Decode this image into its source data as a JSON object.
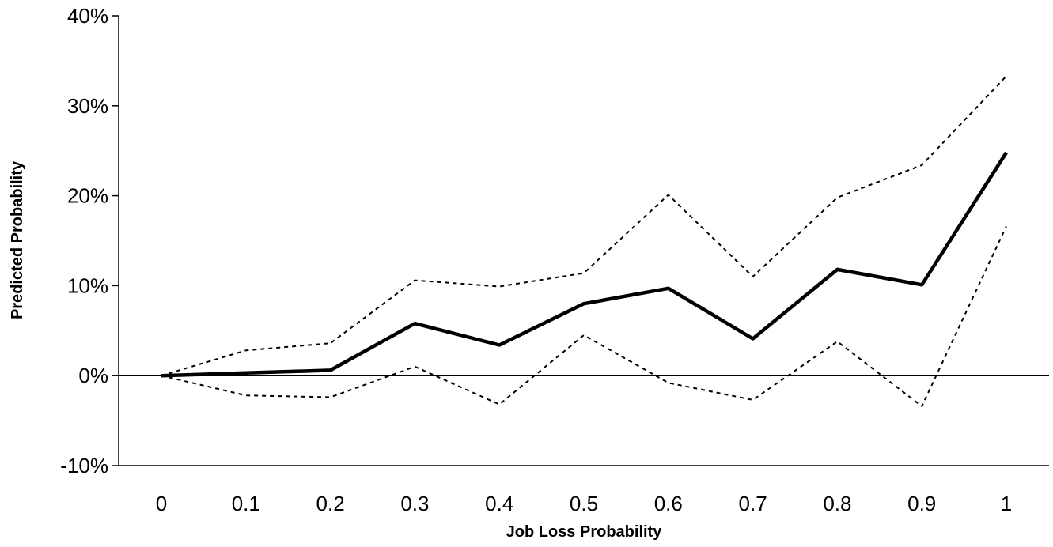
{
  "chart_data": {
    "type": "line",
    "title": "",
    "xlabel": "Job Loss Probability",
    "ylabel": "Predicted Probability",
    "x": [
      0,
      0.1,
      0.2,
      0.3,
      0.4,
      0.5,
      0.6,
      0.7,
      0.8,
      0.9,
      1
    ],
    "x_tick_labels": [
      "0",
      "0.1",
      "0.2",
      "0.3",
      "0.4",
      "0.5",
      "0.6",
      "0.7",
      "0.8",
      "0.9",
      "1"
    ],
    "ylim": [
      -10,
      40
    ],
    "y_ticks": [
      -10,
      0,
      10,
      20,
      30,
      40
    ],
    "y_tick_labels": [
      "-10%",
      "0%",
      "10%",
      "20%",
      "30%",
      "40%"
    ],
    "grid": false,
    "legend": "none",
    "zero_line": true,
    "series": [
      {
        "style": "solid",
        "color": "#000000",
        "values": [
          0,
          0.3,
          0.6,
          5.8,
          3.4,
          8.0,
          9.7,
          4.1,
          11.8,
          10.1,
          24.8
        ]
      },
      {
        "style": "dotted",
        "color": "#000000",
        "values": [
          0,
          2.8,
          3.6,
          10.6,
          9.9,
          11.4,
          20.1,
          11.0,
          19.8,
          23.4,
          33.3
        ]
      },
      {
        "style": "dotted",
        "color": "#000000",
        "values": [
          0,
          -2.2,
          -2.4,
          1.0,
          -3.2,
          4.5,
          -0.8,
          -2.7,
          3.8,
          -3.4,
          16.6
        ]
      }
    ]
  }
}
